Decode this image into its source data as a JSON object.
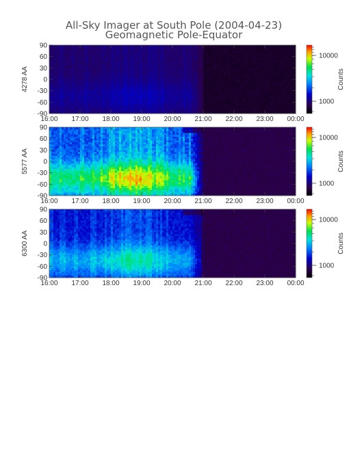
{
  "chart_data": {
    "type": "heatmap",
    "title": "All-Sky Imager at South Pole (2004-04-23)",
    "subtitle": "Geomagnetic Pole-Equator",
    "x_ticks": [
      "16:00",
      "17:00",
      "18:00",
      "19:00",
      "20:00",
      "21:00",
      "22:00",
      "23:00",
      "00:00"
    ],
    "y_ticks": [
      "90",
      "60",
      "30",
      "0",
      "-30",
      "-60",
      "-90"
    ],
    "ylim": [
      -90,
      90
    ],
    "colorbar": {
      "label": "Counts",
      "scale": "log",
      "ticks": [
        "10000",
        "1000"
      ]
    },
    "panels": [
      {
        "ylabel": "4278 AA",
        "activity_end_time": "21:00",
        "peak_level": 0.25
      },
      {
        "ylabel": "5577 AA",
        "activity_end_time": "21:00",
        "peak_level": 0.85
      },
      {
        "ylabel": "6300 AA",
        "activity_end_time": "21:00",
        "peak_level": 0.6
      }
    ]
  }
}
